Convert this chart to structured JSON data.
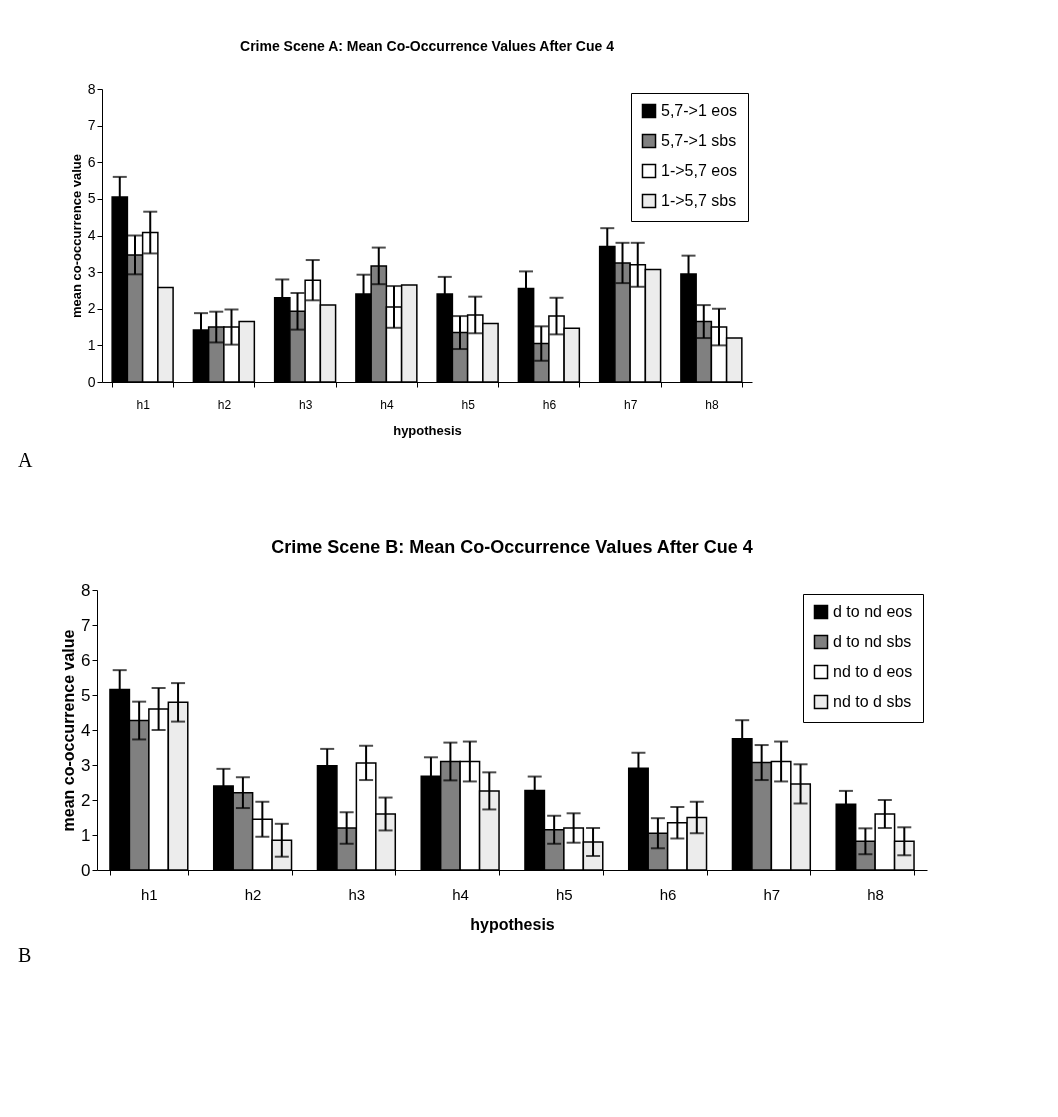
{
  "chart_data": [
    {
      "type": "bar",
      "title": "Crime Scene A: Mean Co-Occurrence Values After Cue 4",
      "xlabel": "hypothesis",
      "ylabel": "mean co-occurrence value",
      "categories": [
        "h1",
        "h2",
        "h3",
        "h4",
        "h5",
        "h6",
        "h7",
        "h8"
      ],
      "series": [
        {
          "name": "5,7->1 eos",
          "color": "#000000",
          "values": [
            5.05,
            1.42,
            2.3,
            2.4,
            2.4,
            2.55,
            3.7,
            2.95
          ],
          "errors": [
            0.55,
            0.46,
            0.5,
            0.53,
            0.47,
            0.47,
            0.5,
            0.5
          ]
        },
        {
          "name": "5,7->1 sbs",
          "color": "#808080",
          "values": [
            3.47,
            1.5,
            1.93,
            3.17,
            1.35,
            1.05,
            3.25,
            1.65
          ],
          "errors": [
            0.53,
            0.42,
            0.5,
            0.5,
            0.45,
            0.47,
            0.55,
            0.45
          ]
        },
        {
          "name": "1->5,7 eos",
          "color": "#ffffff",
          "values": [
            4.08,
            1.5,
            2.78,
            2.05,
            1.83,
            1.8,
            3.2,
            1.5
          ],
          "errors": [
            0.57,
            0.48,
            0.55,
            0.57,
            0.5,
            0.5,
            0.6,
            0.5
          ]
        },
        {
          "name": "1->5,7 sbs",
          "color": "#ececec",
          "values": [
            2.58,
            1.65,
            2.1,
            2.65,
            1.6,
            1.47,
            3.07,
            1.2
          ]
        }
      ],
      "ylim": [
        0,
        8
      ],
      "yticks": [
        0,
        1,
        2,
        3,
        4,
        5,
        6,
        7,
        8
      ],
      "grid": false,
      "legend": "top right",
      "annotations": [
        "A"
      ]
    },
    {
      "type": "bar",
      "title": "Crime Scene B: Mean Co-Occurrence Values After Cue 4",
      "xlabel": "hypothesis",
      "ylabel": "mean co-occurrence value",
      "categories": [
        "h1",
        "h2",
        "h3",
        "h4",
        "h5",
        "h6",
        "h7",
        "h8"
      ],
      "series": [
        {
          "name": "d to nd eos",
          "color": "#000000",
          "values": [
            5.16,
            2.4,
            2.98,
            2.68,
            2.27,
            2.91,
            3.75,
            1.88
          ],
          "errors": [
            0.55,
            0.49,
            0.48,
            0.54,
            0.4,
            0.44,
            0.53,
            0.38
          ]
        },
        {
          "name": "d to nd sbs",
          "color": "#808080",
          "values": [
            4.27,
            2.21,
            1.2,
            3.1,
            1.15,
            1.05,
            3.07,
            0.82
          ],
          "errors": [
            0.54,
            0.44,
            0.45,
            0.54,
            0.4,
            0.43,
            0.5,
            0.37
          ]
        },
        {
          "name": "nd to d eos",
          "color": "#ffffff",
          "values": [
            4.6,
            1.45,
            3.06,
            3.1,
            1.2,
            1.35,
            3.1,
            1.6
          ],
          "errors": [
            0.6,
            0.5,
            0.49,
            0.57,
            0.42,
            0.45,
            0.57,
            0.4
          ]
        },
        {
          "name": "nd to d sbs",
          "color": "#ececec",
          "values": [
            4.79,
            0.85,
            1.6,
            2.26,
            0.8,
            1.5,
            2.46,
            0.82
          ],
          "errors": [
            0.55,
            0.47,
            0.47,
            0.53,
            0.4,
            0.45,
            0.56,
            0.4
          ]
        }
      ],
      "ylim": [
        0,
        8
      ],
      "yticks": [
        0,
        1,
        2,
        3,
        4,
        5,
        6,
        7,
        8
      ],
      "grid": false,
      "legend": "top right",
      "annotations": [
        "B"
      ]
    }
  ]
}
